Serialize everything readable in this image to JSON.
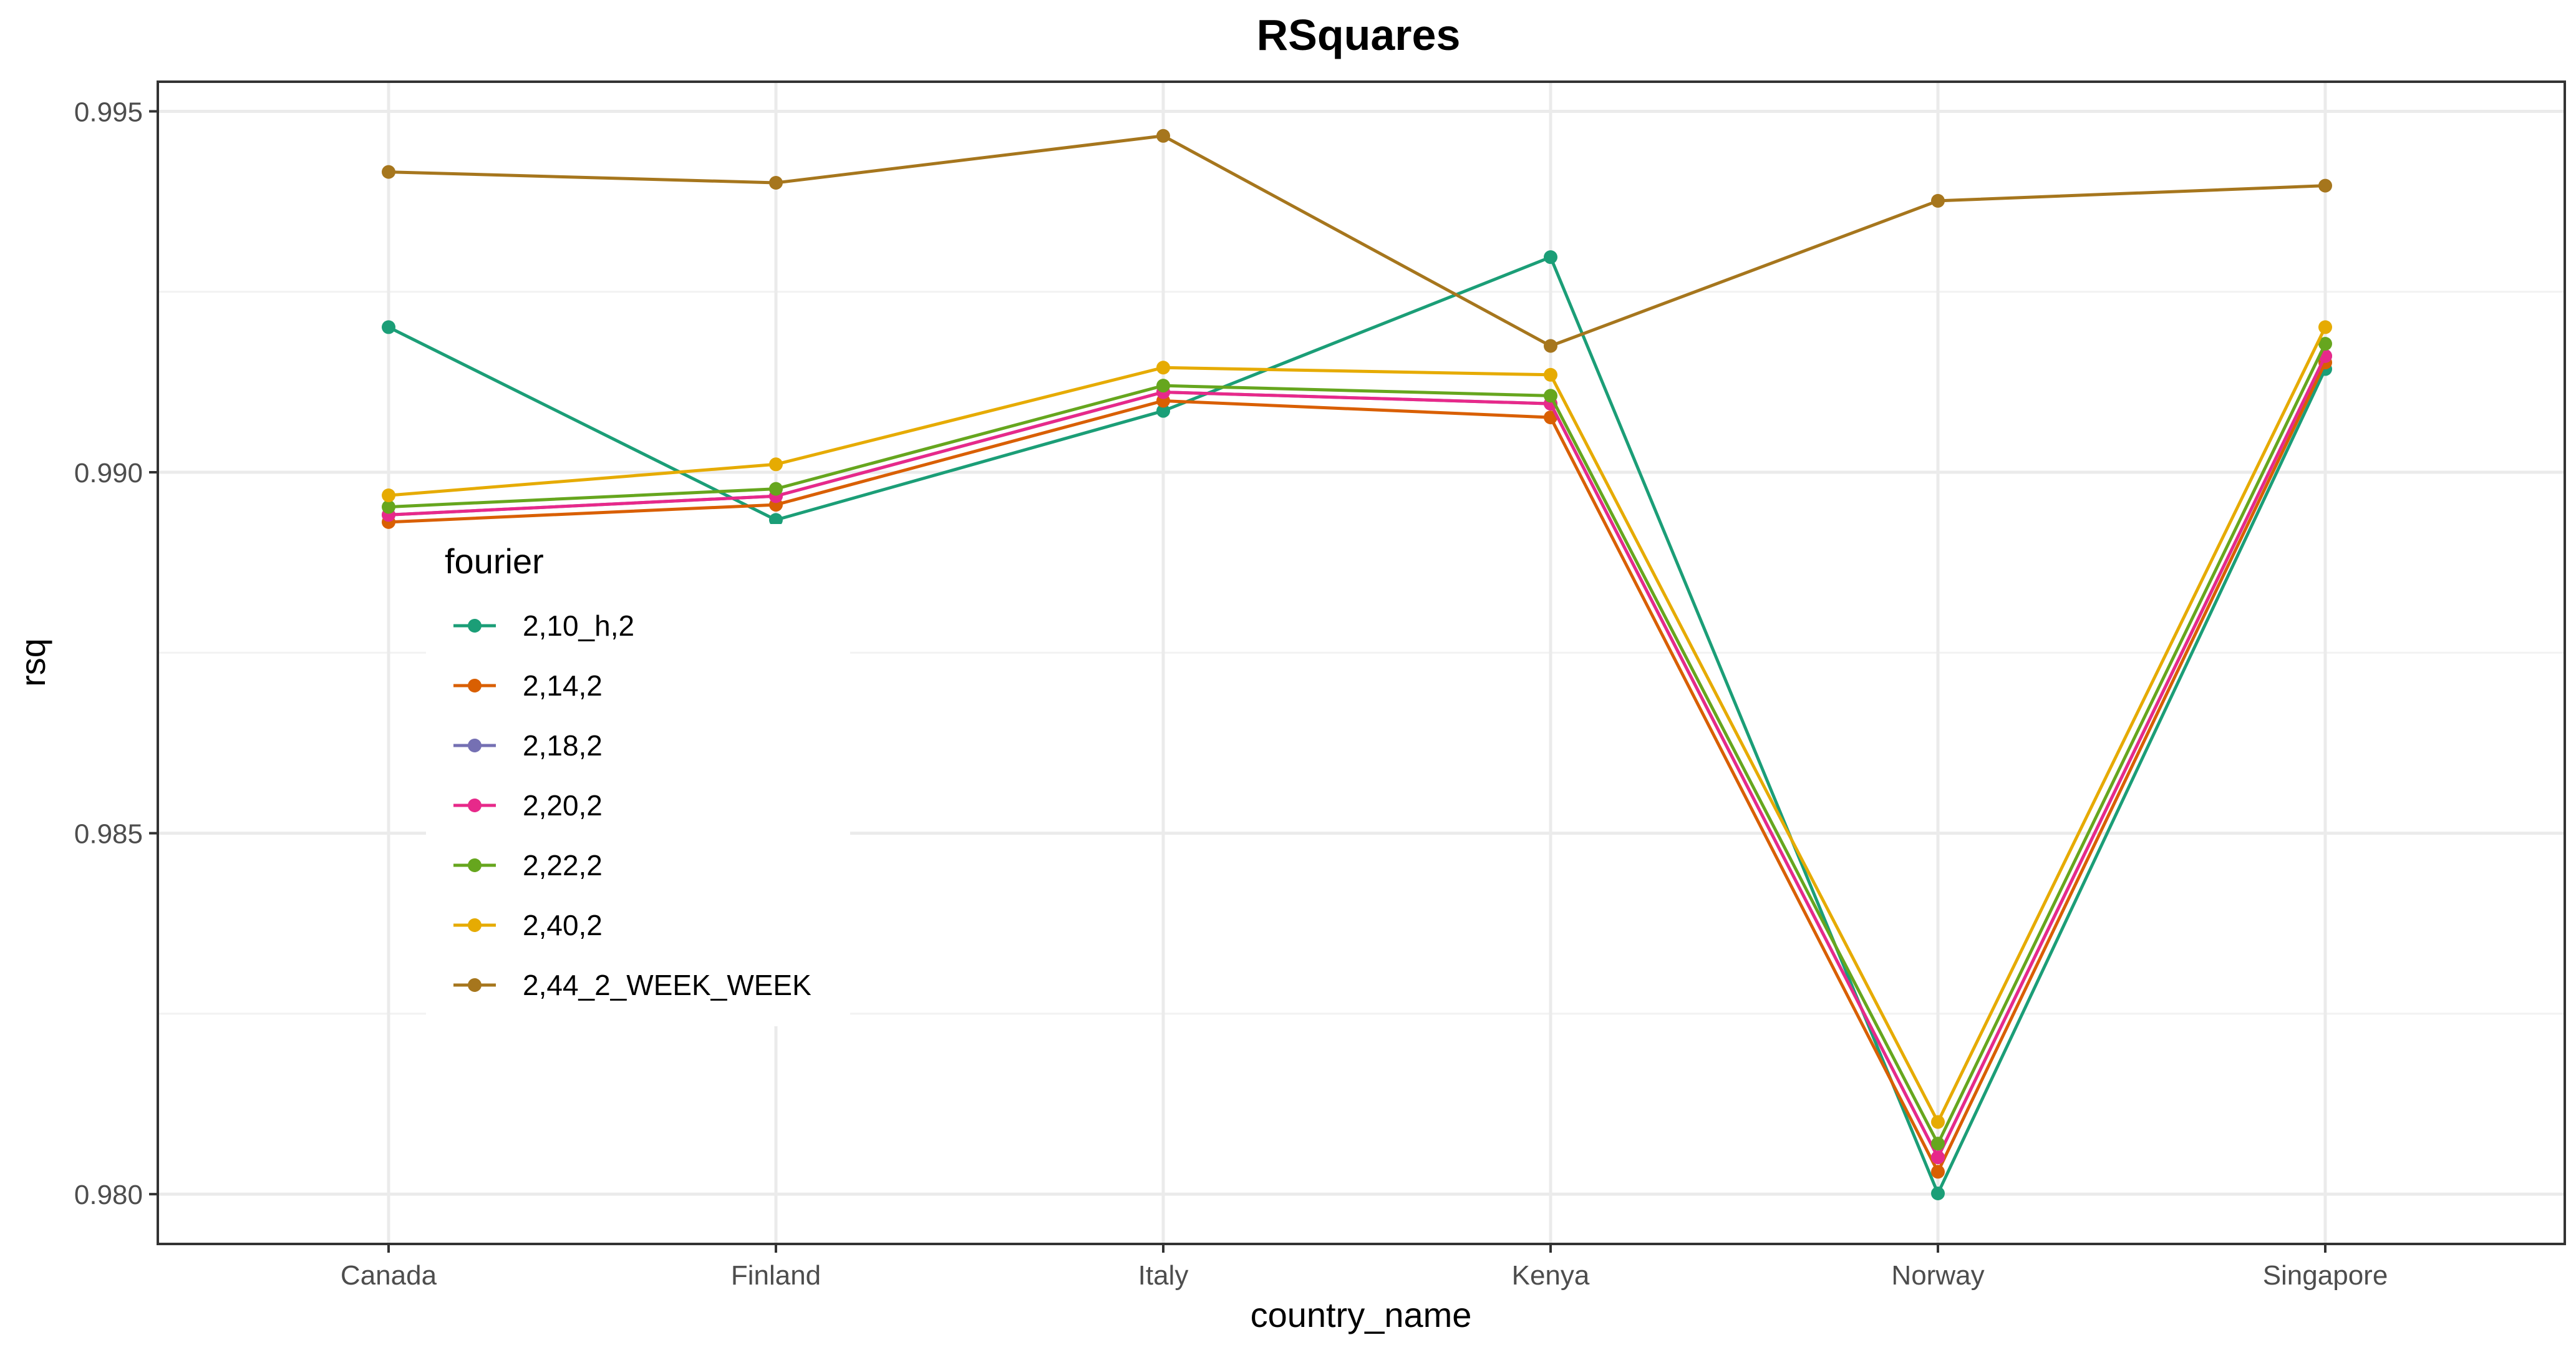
{
  "chart_data": {
    "type": "line",
    "title": "RSquares",
    "xlabel": "country_name",
    "ylabel": "rsq",
    "categories": [
      "Canada",
      "Finland",
      "Italy",
      "Kenya",
      "Norway",
      "Singapore"
    ],
    "ylim": [
      0.97931,
      0.99541
    ],
    "yticks": [
      0.98,
      0.985,
      0.99,
      0.995
    ],
    "ytick_labels": [
      "0.980",
      "0.985",
      "0.990",
      "0.995"
    ],
    "grid": true,
    "legend": {
      "title": "fourier",
      "position": "inside-left"
    },
    "series": [
      {
        "name": "2,10_h,2",
        "color": "#1b9e77",
        "values": [
          0.99201,
          0.98934,
          0.99085,
          0.99298,
          0.98001,
          0.99143
        ]
      },
      {
        "name": "2,14,2",
        "color": "#d95f02",
        "values": [
          0.98931,
          0.98955,
          0.99099,
          0.99076,
          0.98031,
          0.99152
        ]
      },
      {
        "name": "2,18,2",
        "color": "#7570b3",
        "values": [
          0.98941,
          0.98967,
          0.99111,
          0.99095,
          0.98051,
          0.99161
        ]
      },
      {
        "name": "2,20,2",
        "color": "#e7298a",
        "values": [
          0.98941,
          0.98967,
          0.99111,
          0.99095,
          0.98051,
          0.99161
        ]
      },
      {
        "name": "2,22,2",
        "color": "#66a61e",
        "values": [
          0.98952,
          0.98977,
          0.9912,
          0.99106,
          0.9807,
          0.99178
        ]
      },
      {
        "name": "2,40,2",
        "color": "#e6ab02",
        "values": [
          0.98968,
          0.99011,
          0.99145,
          0.99135,
          0.981,
          0.99201
        ]
      },
      {
        "name": "2,44_2_WEEK_WEEK",
        "color": "#a6761d",
        "values": [
          0.99416,
          0.99401,
          0.99466,
          0.99175,
          0.99376,
          0.99397
        ]
      }
    ]
  }
}
